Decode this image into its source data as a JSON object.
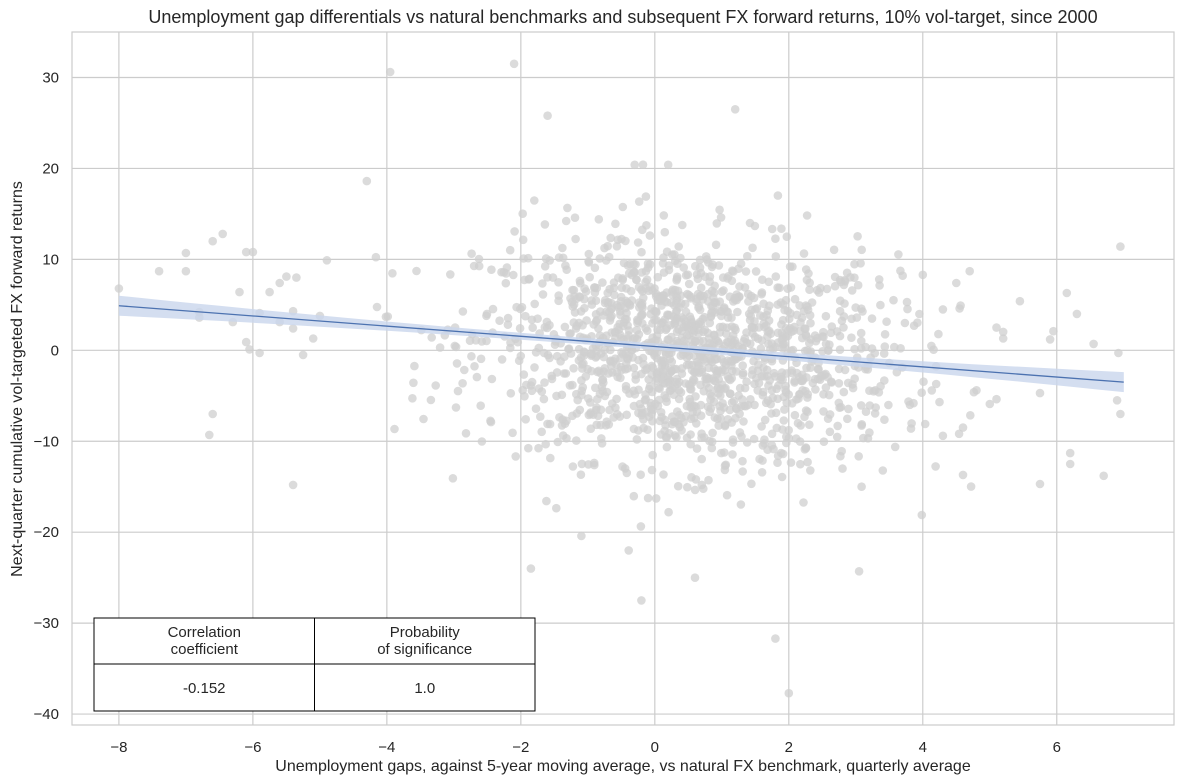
{
  "chart_data": {
    "type": "scatter",
    "title": "Unemployment gap differentials vs natural benchmarks and subsequent FX forward returns, 10% vol-target, since 2000",
    "xlabel": "Unemployment gaps, against 5-year moving average, vs natural FX benchmark, quarterly average",
    "ylabel": "Next-quarter cumulative vol-targeted FX forward returns",
    "xlim": [
      -8.7,
      7.75
    ],
    "ylim": [
      -41.2,
      35.0
    ],
    "x_ticks": [
      -8,
      -6,
      -4,
      -2,
      0,
      2,
      4,
      6
    ],
    "x_tick_labels": [
      "−8",
      "−6",
      "−4",
      "−2",
      "0",
      "2",
      "4",
      "6"
    ],
    "y_ticks": [
      -40,
      -30,
      -20,
      -10,
      0,
      10,
      20,
      30
    ],
    "y_tick_labels": [
      "−40",
      "−30",
      "−20",
      "−10",
      "0",
      "10",
      "20",
      "30"
    ],
    "grid": true,
    "point_color": "#cfcfcf",
    "regression": {
      "color": "#4c72b0",
      "band_color": "#c9d6ec",
      "x": [
        -8.0,
        7.0
      ],
      "y": [
        4.9,
        -3.5
      ],
      "band_halfwidth_ends": 1.1,
      "band_halfwidth_center": 0.35
    },
    "outlier_points": [
      [
        -8.0,
        6.8
      ],
      [
        -7.4,
        8.7
      ],
      [
        -7.0,
        10.7
      ],
      [
        -7.0,
        8.7
      ],
      [
        -6.8,
        4.2
      ],
      [
        -6.8,
        3.6
      ],
      [
        -6.6,
        12.0
      ],
      [
        -6.45,
        12.8
      ],
      [
        -6.6,
        -7.0
      ],
      [
        -6.65,
        -9.3
      ],
      [
        -6.3,
        3.1
      ],
      [
        -6.2,
        6.4
      ],
      [
        -6.1,
        10.8
      ],
      [
        -6.0,
        10.8
      ],
      [
        -6.1,
        0.9
      ],
      [
        -6.05,
        0.1
      ],
      [
        -5.9,
        4.1
      ],
      [
        -5.75,
        6.4
      ],
      [
        -5.6,
        7.4
      ],
      [
        -5.5,
        8.1
      ],
      [
        -5.4,
        4.3
      ],
      [
        -5.35,
        8.0
      ],
      [
        -5.4,
        -14.8
      ],
      [
        -5.25,
        -0.5
      ],
      [
        -5.1,
        1.3
      ],
      [
        -5.6,
        3.1
      ],
      [
        -5.4,
        2.4
      ],
      [
        -5.9,
        -0.3
      ],
      [
        -3.95,
        30.6
      ],
      [
        -2.1,
        31.5
      ],
      [
        -4.3,
        18.6
      ],
      [
        -1.6,
        25.8
      ],
      [
        1.2,
        26.5
      ],
      [
        -0.3,
        20.4
      ],
      [
        0.2,
        20.4
      ],
      [
        -1.85,
        -24.0
      ],
      [
        -0.2,
        -27.5
      ],
      [
        0.6,
        -25.0
      ],
      [
        1.8,
        -31.7
      ],
      [
        2.0,
        -37.7
      ],
      [
        3.05,
        -24.3
      ],
      [
        4.6,
        -13.7
      ],
      [
        6.2,
        -12.5
      ],
      [
        6.2,
        -11.3
      ],
      [
        5.75,
        -14.7
      ],
      [
        6.7,
        -13.8
      ],
      [
        6.95,
        11.4
      ],
      [
        6.92,
        -0.3
      ],
      [
        6.9,
        -5.5
      ],
      [
        6.95,
        -7.0
      ],
      [
        6.55,
        0.7
      ],
      [
        6.15,
        6.3
      ],
      [
        6.3,
        4.0
      ],
      [
        5.95,
        2.1
      ],
      [
        5.45,
        5.4
      ],
      [
        5.1,
        2.5
      ],
      [
        5.2,
        1.3
      ],
      [
        5.0,
        -5.9
      ],
      [
        4.3,
        -9.4
      ],
      [
        4.2,
        -3.7
      ],
      [
        4.25,
        -5.7
      ],
      [
        4.3,
        4.5
      ],
      [
        4.5,
        7.4
      ],
      [
        4.55,
        4.6
      ],
      [
        4.7,
        8.7
      ],
      [
        4.0,
        8.3
      ],
      [
        3.7,
        8.2
      ],
      [
        3.35,
        7.8
      ],
      [
        3.5,
        -1.4
      ],
      [
        4.6,
        -8.5
      ],
      [
        5.75,
        -4.7
      ],
      [
        5.9,
        1.2
      ]
    ],
    "cloud_center_x": 0.5,
    "cloud_slope": -0.56,
    "cloud_count": 1500,
    "cloud_y_sd": 6.2,
    "table": {
      "headers": [
        "Correlation\ncoefficient",
        "Probability\nof significance"
      ],
      "values": [
        "-0.152",
        "1.0"
      ]
    }
  }
}
